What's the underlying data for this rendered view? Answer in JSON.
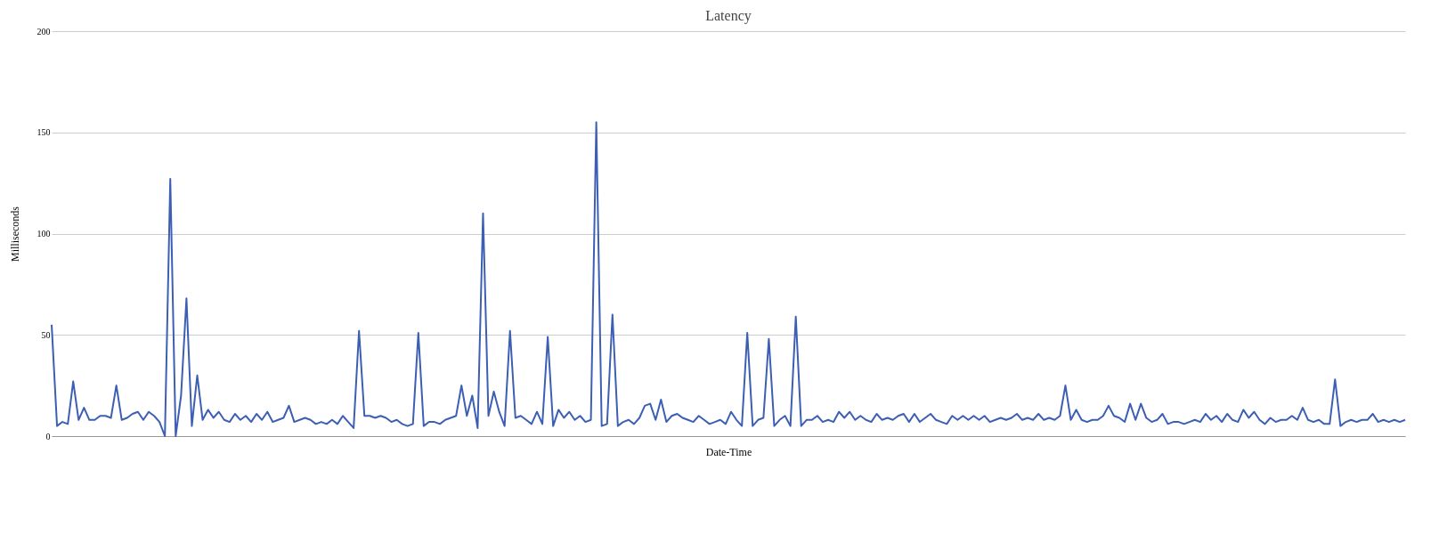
{
  "chart_data": {
    "type": "line",
    "title": "Latency",
    "xlabel": "Date-Time",
    "ylabel": "Milliseconds",
    "categories": [
      null,
      null,
      null,
      null,
      null,
      null,
      null,
      null,
      null,
      null,
      null,
      null,
      null,
      null,
      null,
      null,
      null,
      null,
      null,
      null,
      null,
      null,
      null,
      null,
      null,
      null,
      null,
      null,
      null,
      null,
      null,
      null,
      null,
      null,
      null,
      null,
      null,
      null,
      null,
      null,
      null,
      null,
      null,
      null,
      null,
      null,
      null,
      null,
      null,
      null,
      null,
      null,
      null,
      null,
      null,
      null,
      null,
      null,
      null,
      null,
      null,
      null,
      null,
      null,
      null,
      null,
      null,
      null,
      null,
      null,
      null,
      null,
      null,
      null,
      null,
      null,
      null,
      null,
      null,
      null,
      null,
      null,
      null,
      null,
      null,
      null,
      null,
      null,
      null,
      null,
      null,
      null,
      null,
      null,
      null,
      null,
      null,
      null,
      null,
      null,
      null,
      null,
      null,
      null,
      null,
      null,
      null,
      null,
      null,
      null,
      null,
      null,
      null,
      null,
      null,
      null,
      null,
      null,
      null,
      null,
      null,
      null,
      null,
      null,
      null,
      null,
      null,
      null,
      null,
      null,
      null,
      null,
      null,
      null,
      null,
      null,
      null,
      null,
      null,
      null,
      null,
      null,
      null,
      null,
      null,
      null,
      null,
      null,
      null,
      null,
      null,
      null,
      null,
      null,
      null,
      null,
      null,
      null,
      null,
      null,
      null,
      null,
      null,
      null,
      null,
      null,
      null,
      null,
      null,
      null,
      null,
      null,
      null,
      null,
      null,
      null,
      null,
      null,
      null,
      null,
      null,
      null,
      null,
      null,
      null,
      null,
      null,
      null,
      null,
      null,
      null,
      null,
      null,
      null,
      null,
      null,
      null,
      null,
      null,
      null,
      null,
      null,
      null,
      null,
      null,
      null,
      null,
      null,
      null,
      null,
      null,
      null,
      null,
      null,
      null,
      null,
      null,
      null,
      null,
      null,
      null,
      null,
      null,
      null,
      null,
      null,
      null,
      null,
      null,
      null,
      null,
      null,
      null,
      null,
      null,
      null,
      null,
      null,
      null,
      null,
      null,
      null,
      null,
      null,
      null,
      null,
      null,
      null,
      null,
      null,
      null,
      null
    ],
    "series": [
      {
        "color": "#3c5fb4",
        "values": [
          55,
          5,
          7,
          6,
          27,
          8,
          14,
          8,
          8,
          10,
          10,
          9,
          25,
          8,
          9,
          11,
          12,
          8,
          12,
          10,
          7,
          0,
          127,
          0,
          20,
          68,
          5,
          30,
          8,
          13,
          9,
          12,
          8,
          7,
          11,
          8,
          10,
          7,
          11,
          8,
          12,
          7,
          8,
          9,
          15,
          7,
          8,
          9,
          8,
          6,
          7,
          6,
          8,
          6,
          10,
          7,
          4,
          52,
          10,
          10,
          9,
          10,
          9,
          7,
          8,
          6,
          5,
          6,
          51,
          5,
          7,
          7,
          6,
          8,
          9,
          10,
          25,
          10,
          20,
          4,
          110,
          10,
          22,
          12,
          5,
          52,
          9,
          10,
          8,
          6,
          12,
          6,
          49,
          5,
          13,
          9,
          12,
          8,
          10,
          7,
          8,
          155,
          5,
          6,
          60,
          5,
          7,
          8,
          6,
          9,
          15,
          16,
          8,
          18,
          7,
          10,
          11,
          9,
          8,
          7,
          10,
          8,
          6,
          7,
          8,
          6,
          12,
          8,
          5,
          51,
          5,
          8,
          9,
          48,
          5,
          8,
          10,
          5,
          59,
          5,
          8,
          8,
          10,
          7,
          8,
          7,
          12,
          9,
          12,
          8,
          10,
          8,
          7,
          11,
          8,
          9,
          8,
          10,
          11,
          7,
          11,
          7,
          9,
          11,
          8,
          7,
          6,
          10,
          8,
          10,
          8,
          10,
          8,
          10,
          7,
          8,
          9,
          8,
          9,
          11,
          8,
          9,
          8,
          11,
          8,
          9,
          8,
          10,
          25,
          8,
          13,
          8,
          7,
          8,
          8,
          10,
          15,
          10,
          9,
          7,
          16,
          8,
          16,
          9,
          7,
          8,
          11,
          6,
          7,
          7,
          6,
          7,
          8,
          7,
          11,
          8,
          10,
          7,
          11,
          8,
          7,
          13,
          9,
          12,
          8,
          6,
          9,
          7,
          8,
          8,
          10,
          8,
          14,
          8,
          7,
          8,
          6,
          6,
          28,
          5,
          7,
          8,
          7,
          8,
          8,
          11,
          7,
          8,
          7,
          8,
          7,
          8
        ]
      }
    ],
    "ylim": [
      0,
      200
    ],
    "yticks": [
      0,
      50,
      100,
      150,
      200
    ],
    "grid": "y",
    "line_style": "solid"
  }
}
